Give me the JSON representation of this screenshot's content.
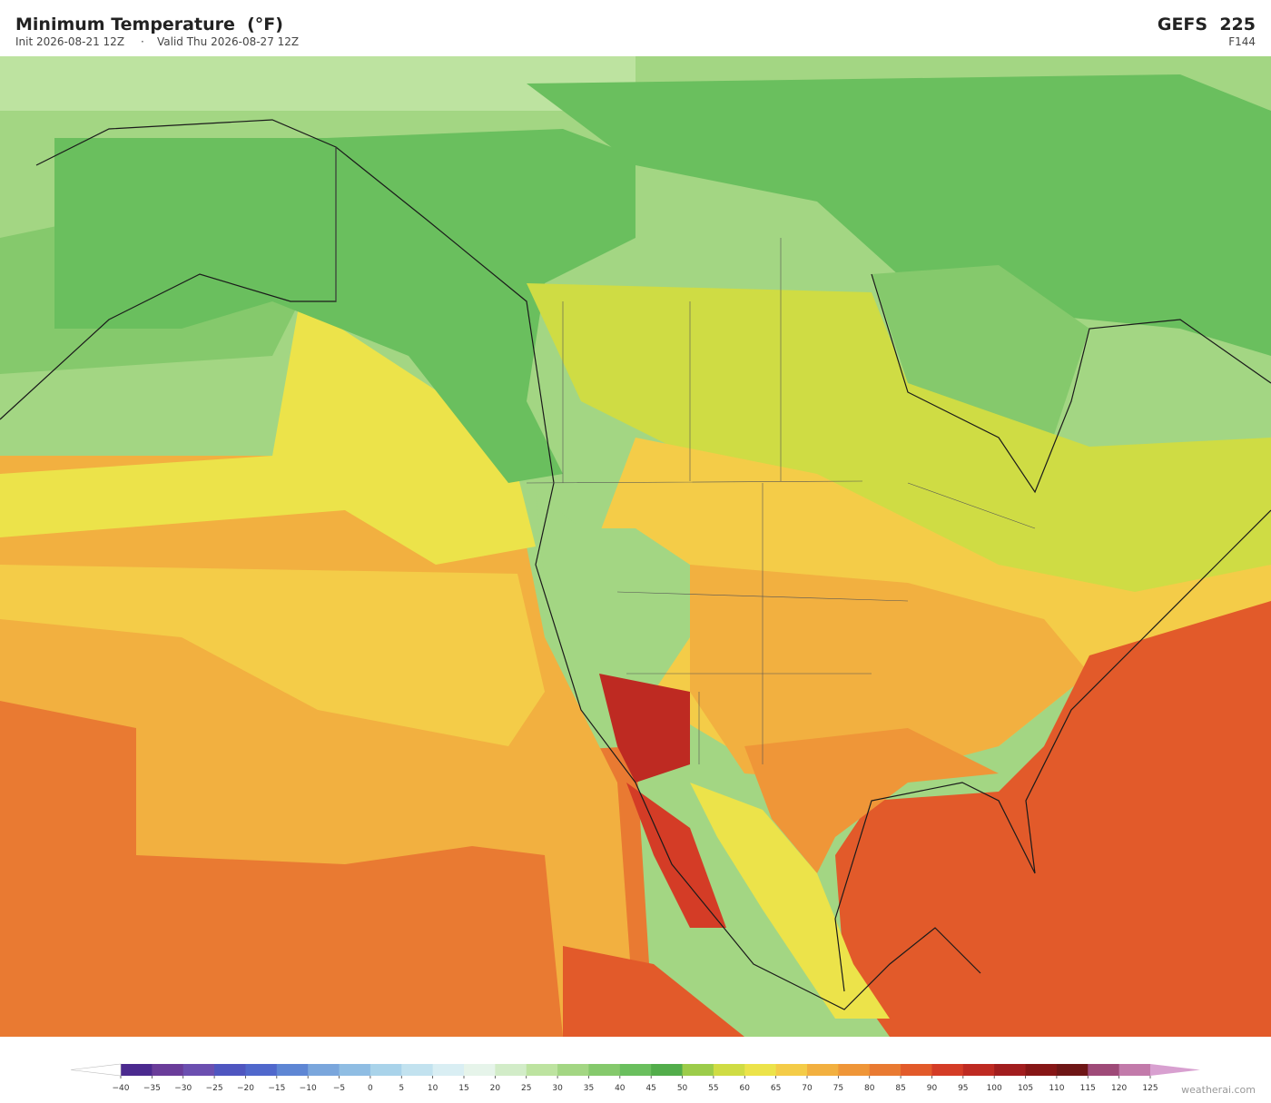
{
  "header": {
    "title": "Minimum Temperature  (°F)",
    "init": "Init 2026-08-21 12Z",
    "separator": "·",
    "valid": "Valid Thu 2026-08-27 12Z",
    "model": "GEFS  225",
    "forecast_hour": "F144"
  },
  "colorbar": {
    "ticks": [
      {
        "value": -40,
        "label": "−40"
      },
      {
        "value": -35,
        "label": "−35"
      },
      {
        "value": -30,
        "label": "−30"
      },
      {
        "value": -25,
        "label": "−25"
      },
      {
        "value": -20,
        "label": "−20"
      },
      {
        "value": -15,
        "label": "−15"
      },
      {
        "value": -10,
        "label": "−10"
      },
      {
        "value": -5,
        "label": "−5"
      },
      0,
      5,
      10,
      15,
      20,
      25,
      30,
      35,
      40,
      45,
      50,
      55,
      60,
      65,
      70,
      75,
      80,
      85,
      90,
      95,
      100,
      105,
      110,
      115,
      120,
      125
    ],
    "colors": [
      "#4b2a8f",
      "#6a3d9a",
      "#6b4fb0",
      "#4f56c0",
      "#5068cc",
      "#5e86d4",
      "#7aa6dc",
      "#8fbde3",
      "#a9d3ea",
      "#c2e2ef",
      "#d9eef3",
      "#e6f4ea",
      "#d2ecc8",
      "#bde3a0",
      "#a3d683",
      "#85c96c",
      "#6abf5e",
      "#52ad4b",
      "#9ccc4a",
      "#cfdc44",
      "#ece34a",
      "#f4cc48",
      "#f2b040",
      "#ef9638",
      "#e97a32",
      "#e25a2a",
      "#d43c26",
      "#be2a22",
      "#a11d1e",
      "#861616",
      "#6e1616",
      "#9e4a78",
      "#c27aaa"
    ],
    "extend_colors": [
      "#ffffff",
      "#d8a0d0"
    ]
  },
  "watermark": "weatherai.com"
}
